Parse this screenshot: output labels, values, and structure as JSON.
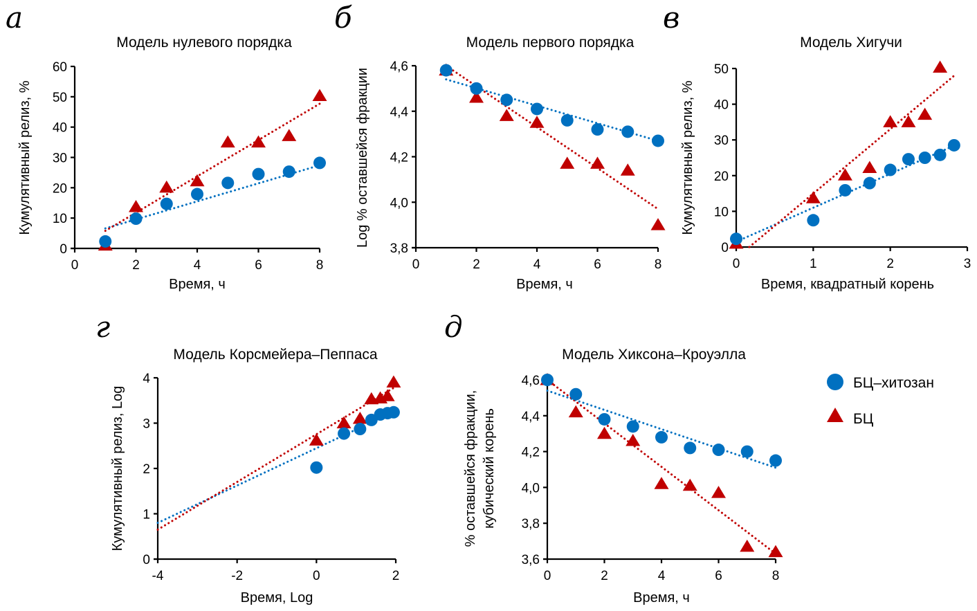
{
  "legend": {
    "items": [
      {
        "label": "БЦ–хитозан",
        "marker": "circle",
        "color": "#0070C0"
      },
      {
        "label": "БЦ",
        "marker": "triangle",
        "color": "#C00000"
      }
    ]
  },
  "chart_data": [
    {
      "id": "a",
      "panel_letter": "а",
      "type": "scatter",
      "title": "Модель нулевого порядка",
      "xlabel": "Время, ч",
      "ylabel": [
        "Кумулятивный релиз, %"
      ],
      "xlim": [
        0,
        8
      ],
      "ylim": [
        0,
        60
      ],
      "xticks": [
        0,
        2,
        4,
        6,
        8
      ],
      "xtick_labels": [
        "0",
        "2",
        "4",
        "6",
        "8"
      ],
      "yticks": [
        0,
        10,
        20,
        30,
        40,
        50,
        60
      ],
      "ytick_labels": [
        "0",
        "10",
        "20",
        "30",
        "40",
        "50",
        "60"
      ],
      "grid": false,
      "series": [
        {
          "name": "БЦ–хитозан",
          "marker": "circle",
          "color": "#0070C0",
          "x": [
            1,
            2,
            3,
            4,
            5,
            6,
            7,
            8
          ],
          "y": [
            2.3,
            9.8,
            14.7,
            17.9,
            21.6,
            24.5,
            25.3,
            28.2
          ],
          "trendline": {
            "x": [
              1,
              8
            ],
            "y": [
              6.6,
              27.4
            ]
          }
        },
        {
          "name": "БЦ",
          "marker": "triangle",
          "color": "#C00000",
          "x": [
            1,
            2,
            3,
            4,
            5,
            6,
            7,
            8
          ],
          "y": [
            1.0,
            13.7,
            20.1,
            22.2,
            35.0,
            35.0,
            37.1,
            50.3
          ],
          "trendline": {
            "x": [
              1,
              8
            ],
            "y": [
              5.8,
              47.7
            ]
          }
        }
      ]
    },
    {
      "id": "b",
      "panel_letter": "б",
      "type": "scatter",
      "title": "Модель первого порядка",
      "xlabel": "Время, ч",
      "ylabel": [
        "Log % оставшейся фракции"
      ],
      "xlim": [
        0,
        8
      ],
      "ylim": [
        3.8,
        4.6
      ],
      "xticks": [
        0,
        2,
        4,
        6,
        8
      ],
      "xtick_labels": [
        "0",
        "2",
        "4",
        "6",
        "8"
      ],
      "yticks": [
        3.8,
        4.0,
        4.2,
        4.4,
        4.6
      ],
      "ytick_labels": [
        "3,8",
        "4,0",
        "4,2",
        "4,4",
        "4,6"
      ],
      "grid": false,
      "series": [
        {
          "name": "БЦ–хитозан",
          "marker": "circle",
          "color": "#0070C0",
          "x": [
            1,
            2,
            3,
            4,
            5,
            6,
            7,
            8
          ],
          "y": [
            4.58,
            4.5,
            4.45,
            4.41,
            4.36,
            4.32,
            4.31,
            4.27
          ],
          "trendline": {
            "x": [
              1,
              8
            ],
            "y": [
              4.54,
              4.27
            ]
          }
        },
        {
          "name": "БЦ",
          "marker": "triangle",
          "color": "#C00000",
          "x": [
            1,
            2,
            3,
            4,
            5,
            6,
            7,
            8
          ],
          "y": [
            4.58,
            4.46,
            4.38,
            4.35,
            4.17,
            4.17,
            4.14,
            3.9
          ],
          "trendline": {
            "x": [
              1,
              8
            ],
            "y": [
              4.6,
              3.97
            ]
          }
        }
      ]
    },
    {
      "id": "v",
      "panel_letter": "в",
      "type": "scatter",
      "title": "Модель Хигучи",
      "xlabel": "Время, квадратный корень",
      "ylabel": [
        "Кумулятивный релиз, %"
      ],
      "xlim": [
        0,
        3
      ],
      "ylim": [
        0,
        50
      ],
      "xticks": [
        0,
        1,
        2,
        3
      ],
      "xtick_labels": [
        "0",
        "1",
        "2",
        "3"
      ],
      "yticks": [
        0,
        10,
        20,
        30,
        40,
        50
      ],
      "ytick_labels": [
        "0",
        "10",
        "20",
        "30",
        "40",
        "50"
      ],
      "grid": false,
      "series": [
        {
          "name": "БЦ–хитозан",
          "marker": "circle",
          "color": "#0070C0",
          "x": [
            0,
            1,
            1.414,
            1.732,
            2,
            2.236,
            2.449,
            2.646,
            2.828
          ],
          "y": [
            2.3,
            7.5,
            15.9,
            17.9,
            21.6,
            24.6,
            25.0,
            25.8,
            28.5
          ],
          "trendline": {
            "x": [
              0,
              2.83
            ],
            "y": [
              1.5,
              28.4
            ]
          }
        },
        {
          "name": "БЦ",
          "marker": "triangle",
          "color": "#C00000",
          "x": [
            0,
            1,
            1.414,
            1.732,
            2,
            2.236,
            2.449,
            2.646
          ],
          "y": [
            1.0,
            13.7,
            20.1,
            22.2,
            35.0,
            35.0,
            37.1,
            50.3
          ],
          "trendline": {
            "x": [
              0.17,
              2.83
            ],
            "y": [
              0,
              48.0
            ]
          }
        }
      ]
    },
    {
      "id": "g",
      "panel_letter": "г",
      "type": "scatter",
      "title": "Модель Корсмейера–Пеппаса",
      "xlabel": "Время, Log",
      "ylabel": [
        "Кумулятивный релиз, Log"
      ],
      "xlim": [
        -4,
        2
      ],
      "ylim": [
        0,
        4
      ],
      "xticks": [
        -4,
        -2,
        0,
        2
      ],
      "xtick_labels": [
        "-4",
        "-2",
        "0",
        "2"
      ],
      "yticks": [
        0,
        1,
        2,
        3,
        4
      ],
      "ytick_labels": [
        "0",
        "1",
        "2",
        "3",
        "4"
      ],
      "grid": false,
      "series": [
        {
          "name": "БЦ–хитозан",
          "marker": "circle",
          "color": "#0070C0",
          "x": [
            0,
            0.693,
            1.099,
            1.386,
            1.609,
            1.792,
            1.946
          ],
          "y": [
            2.02,
            2.77,
            2.87,
            3.07,
            3.19,
            3.22,
            3.24
          ],
          "trendline": {
            "x": [
              -4,
              1.95
            ],
            "y": [
              0.8,
              3.25
            ]
          }
        },
        {
          "name": "БЦ",
          "marker": "triangle",
          "color": "#C00000",
          "x": [
            0,
            0.693,
            1.099,
            1.386,
            1.609,
            1.792,
            1.946
          ],
          "y": [
            2.62,
            3.0,
            3.1,
            3.53,
            3.55,
            3.6,
            3.9
          ],
          "trendline": {
            "x": [
              -4,
              1.95
            ],
            "y": [
              0.65,
              3.78
            ]
          }
        }
      ]
    },
    {
      "id": "d",
      "panel_letter": "д",
      "type": "scatter",
      "title": "Модель Хиксона–Кроуэлла",
      "xlabel": "Время, ч",
      "ylabel": [
        "% оставшейся фракции,",
        "кубический корень"
      ],
      "xlim": [
        0,
        8
      ],
      "ylim": [
        3.6,
        4.6
      ],
      "xticks": [
        0,
        2,
        4,
        6,
        8
      ],
      "xtick_labels": [
        "0",
        "2",
        "4",
        "6",
        "8"
      ],
      "yticks": [
        3.6,
        3.8,
        4.0,
        4.2,
        4.4,
        4.6
      ],
      "ytick_labels": [
        "3,6",
        "3,8",
        "4,0",
        "4,2",
        "4,4",
        "4,6"
      ],
      "grid": false,
      "series": [
        {
          "name": "БЦ–хитозан",
          "marker": "circle",
          "color": "#0070C0",
          "x": [
            0,
            1,
            2,
            3,
            4,
            5,
            6,
            7,
            8
          ],
          "y": [
            4.6,
            4.52,
            4.38,
            4.34,
            4.28,
            4.22,
            4.21,
            4.2,
            4.15
          ],
          "trendline": {
            "x": [
              0,
              8
            ],
            "y": [
              4.54,
              4.11
            ]
          }
        },
        {
          "name": "БЦ",
          "marker": "triangle",
          "color": "#C00000",
          "x": [
            0,
            1,
            2,
            3,
            4,
            5,
            6,
            7,
            8
          ],
          "y": [
            4.6,
            4.42,
            4.3,
            4.26,
            4.02,
            4.01,
            3.97,
            3.67,
            3.64
          ],
          "trendline": {
            "x": [
              0,
              8
            ],
            "y": [
              4.6,
              3.63
            ]
          }
        }
      ]
    }
  ]
}
